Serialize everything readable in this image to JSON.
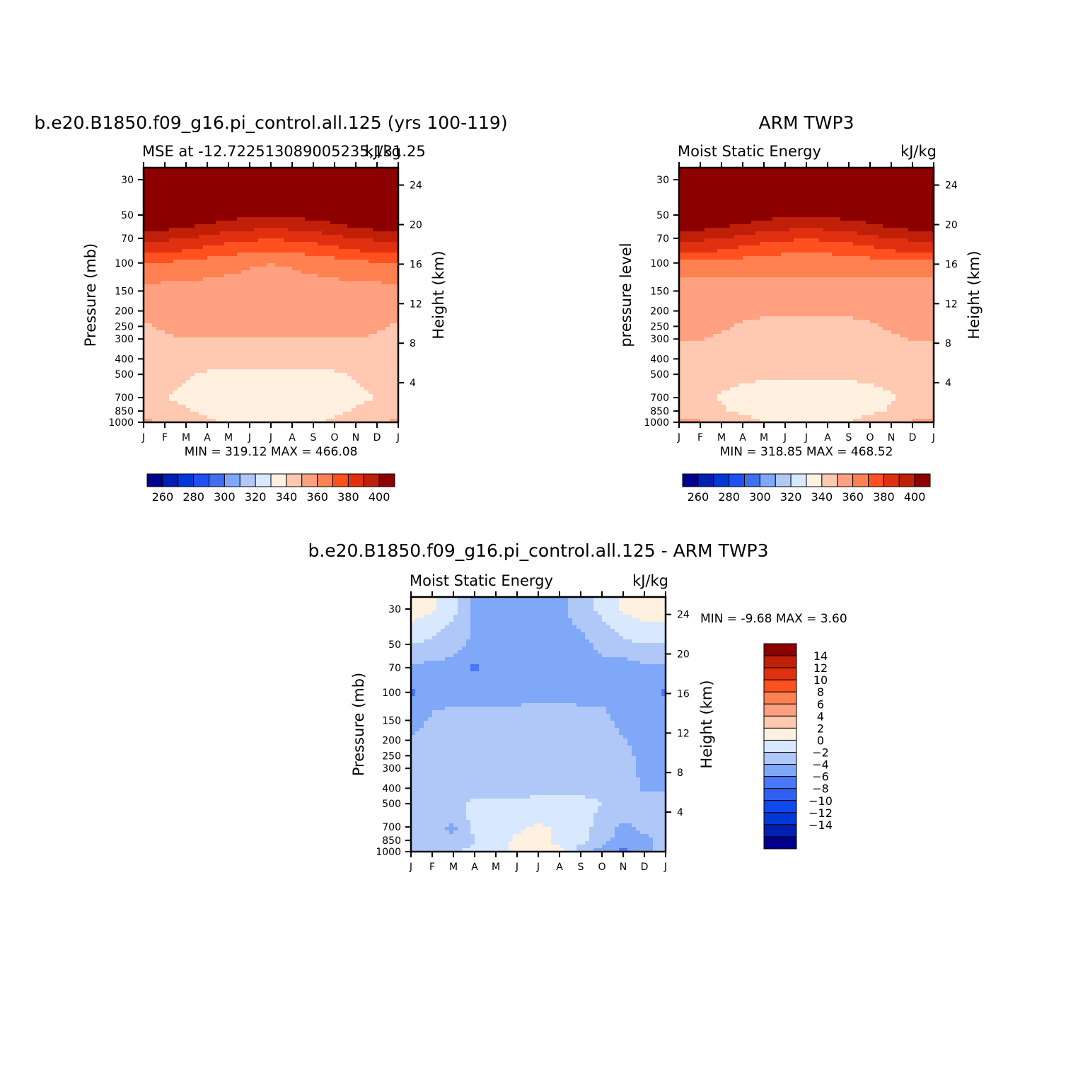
{
  "chart_data": [
    {
      "type": "heatmap",
      "title": "b.e20.B1850.f09_g16.pi_control.all.125 (yrs 100-119)",
      "left_subtitle": "MSE at -12.722513089005235,131.25",
      "right_subtitle": "kJ/kg",
      "ylabel": "Pressure (mb)",
      "y2label": "Height (km)",
      "x_ticks": [
        "J",
        "F",
        "M",
        "A",
        "M",
        "J",
        "J",
        "A",
        "S",
        "O",
        "N",
        "D",
        "J"
      ],
      "y_ticks": [
        "30",
        "50",
        "70",
        "100",
        "150",
        "200",
        "250",
        "300",
        "400",
        "500",
        "700",
        "850",
        "1000"
      ],
      "y2_ticks": [
        "24",
        "20",
        "16",
        "12",
        "8",
        "4"
      ],
      "stats": "MIN = 319.12  MAX = 466.08",
      "min": 319.12,
      "max": 466.08,
      "colorbar_labels": [
        "260",
        "280",
        "300",
        "320",
        "340",
        "360",
        "380",
        "400"
      ],
      "levels": [
        250,
        260,
        270,
        280,
        290,
        300,
        310,
        320,
        330,
        340,
        350,
        360,
        370,
        380,
        390,
        400
      ],
      "field": {
        "pressure_levels": [
          30,
          50,
          60,
          70,
          85,
          100,
          150,
          250,
          500,
          700,
          850,
          1000
        ],
        "note_months": "13 columns J..J",
        "values": [
          [
            420,
            420,
            420,
            420,
            420,
            420,
            420,
            420,
            420,
            420,
            420,
            420,
            420
          ],
          [
            401,
            400,
            399,
            397,
            394,
            392,
            391,
            392,
            394,
            396,
            398,
            400,
            401
          ],
          [
            393,
            392,
            390,
            387,
            384,
            382,
            381,
            382,
            384,
            387,
            390,
            392,
            393
          ],
          [
            383,
            382,
            380,
            377,
            374,
            372,
            371,
            372,
            374,
            377,
            380,
            382,
            383
          ],
          [
            372,
            371,
            369,
            366,
            363,
            361,
            360,
            361,
            363,
            366,
            369,
            371,
            372
          ],
          [
            360,
            359,
            357,
            355,
            353,
            351,
            350,
            351,
            353,
            355,
            357,
            359,
            360
          ],
          [
            346,
            346,
            346,
            346,
            346,
            346,
            346,
            346,
            346,
            346,
            346,
            346,
            346
          ],
          [
            339,
            341,
            343,
            344,
            344,
            344,
            344,
            344,
            344,
            344,
            343,
            341,
            339
          ],
          [
            333,
            333,
            331,
            329,
            328,
            328,
            328,
            328,
            328,
            329,
            331,
            333,
            333
          ],
          [
            332,
            330,
            328,
            326,
            324,
            323,
            322,
            323,
            324,
            326,
            328,
            330,
            332
          ],
          [
            335,
            333,
            331,
            328,
            326,
            325,
            324,
            325,
            326,
            328,
            331,
            333,
            335
          ],
          [
            342,
            340,
            336,
            332,
            328,
            327,
            326,
            327,
            328,
            332,
            336,
            340,
            342
          ]
        ]
      }
    },
    {
      "type": "heatmap",
      "title": "ARM TWP3",
      "left_subtitle": "Moist Static Energy",
      "right_subtitle": "kJ/kg",
      "ylabel": "pressure level",
      "y2label": "Height (km)",
      "x_ticks": [
        "J",
        "F",
        "M",
        "A",
        "M",
        "J",
        "J",
        "A",
        "S",
        "O",
        "N",
        "D",
        "J"
      ],
      "y_ticks": [
        "30",
        "50",
        "70",
        "100",
        "150",
        "200",
        "250",
        "300",
        "400",
        "500",
        "700",
        "850",
        "1000"
      ],
      "y2_ticks": [
        "24",
        "20",
        "16",
        "12",
        "8",
        "4"
      ],
      "stats": "MIN = 318.85  MAX = 468.52",
      "min": 318.85,
      "max": 468.52,
      "colorbar_labels": [
        "260",
        "280",
        "300",
        "320",
        "340",
        "360",
        "380",
        "400"
      ],
      "levels": [
        250,
        260,
        270,
        280,
        290,
        300,
        310,
        320,
        330,
        340,
        350,
        360,
        370,
        380,
        390,
        400
      ],
      "field": {
        "pressure_levels": [
          30,
          50,
          60,
          70,
          85,
          100,
          150,
          250,
          500,
          700,
          850,
          1000
        ],
        "values": [
          [
            420,
            420,
            420,
            420,
            420,
            420,
            420,
            420,
            420,
            420,
            420,
            420,
            420
          ],
          [
            401,
            400,
            399,
            397,
            394,
            392,
            391,
            392,
            394,
            396,
            398,
            400,
            401
          ],
          [
            393,
            392,
            390,
            387,
            384,
            382,
            381,
            382,
            384,
            387,
            390,
            392,
            393
          ],
          [
            383,
            382,
            380,
            377,
            374,
            372,
            371,
            372,
            374,
            377,
            380,
            382,
            383
          ],
          [
            372,
            371,
            369,
            366,
            363,
            361,
            360,
            361,
            363,
            366,
            369,
            371,
            372
          ],
          [
            355,
            355,
            355,
            355,
            355,
            355,
            355,
            355,
            355,
            355,
            355,
            355,
            355
          ],
          [
            346,
            346,
            346,
            346,
            346,
            346,
            346,
            346,
            346,
            346,
            346,
            346,
            346
          ],
          [
            342,
            342,
            341,
            339,
            338,
            337,
            337,
            337,
            338,
            339,
            341,
            342,
            342
          ],
          [
            336,
            335,
            334,
            333,
            332,
            332,
            332,
            332,
            332,
            333,
            334,
            335,
            336
          ],
          [
            334,
            332,
            329,
            326,
            324,
            323,
            322,
            323,
            324,
            326,
            329,
            332,
            334
          ],
          [
            336,
            334,
            331,
            328,
            326,
            325,
            324,
            325,
            326,
            328,
            331,
            334,
            336
          ],
          [
            342,
            341,
            338,
            334,
            330,
            328,
            327,
            328,
            330,
            334,
            338,
            341,
            342
          ]
        ]
      }
    },
    {
      "type": "heatmap",
      "title": "b.e20.B1850.f09_g16.pi_control.all.125 - ARM TWP3",
      "left_subtitle": "Moist Static Energy",
      "right_subtitle": "kJ/kg",
      "ylabel": "Pressure (mb)",
      "y2label": "Height (km)",
      "x_ticks": [
        "J",
        "F",
        "M",
        "A",
        "M",
        "J",
        "J",
        "A",
        "S",
        "O",
        "N",
        "D",
        "J"
      ],
      "y_ticks": [
        "30",
        "50",
        "70",
        "100",
        "150",
        "200",
        "250",
        "300",
        "400",
        "500",
        "700",
        "850",
        "1000"
      ],
      "y2_ticks": [
        "24",
        "20",
        "16",
        "12",
        "8",
        "4"
      ],
      "stats": "MIN =    -9.68  MAX =     3.60",
      "min": -9.68,
      "max": 3.6,
      "colorbar_labels": [
        "14",
        "12",
        "10",
        "8",
        "6",
        "4",
        "2",
        "0",
        "−2",
        "−4",
        "−6",
        "−8",
        "−10",
        "−12",
        "−14"
      ],
      "levels": [
        -16,
        -14,
        -12,
        -10,
        -8,
        -6,
        -4,
        -2,
        0,
        2,
        4,
        6,
        8,
        10,
        12,
        14,
        16
      ],
      "field": {
        "pressure_levels": [
          30,
          40,
          50,
          70,
          100,
          150,
          250,
          400,
          500,
          600,
          700,
          850,
          1000
        ],
        "values": [
          [
            1.0,
            0.5,
            -1.5,
            -4.5,
            -4.5,
            -4.5,
            -4.5,
            -4.5,
            -3.0,
            -1.5,
            0.5,
            1.0,
            1.0
          ],
          [
            -0.5,
            -1.5,
            -2.5,
            -4.5,
            -4.5,
            -4.5,
            -4.5,
            -4.5,
            -4.0,
            -2.5,
            -1.5,
            -0.5,
            -0.5
          ],
          [
            -2.0,
            -2.5,
            -3.0,
            -4.5,
            -4.5,
            -4.5,
            -4.5,
            -4.5,
            -4.5,
            -3.5,
            -2.5,
            -2.0,
            -2.0
          ],
          [
            -4.5,
            -4.5,
            -5.0,
            -6.5,
            -4.5,
            -4.5,
            -4.5,
            -4.5,
            -4.5,
            -4.5,
            -5.0,
            -4.5,
            -4.5
          ],
          [
            -6.3,
            -4.5,
            -4.5,
            -4.5,
            -4.5,
            -4.5,
            -4.5,
            -4.5,
            -4.5,
            -4.5,
            -4.5,
            -5.5,
            -6.3
          ],
          [
            -4.5,
            -3.8,
            -3.5,
            -3.5,
            -3.6,
            -3.4,
            -3.3,
            -3.3,
            -3.4,
            -3.5,
            -4.5,
            -4.5,
            -4.5
          ],
          [
            -3.5,
            -3.0,
            -3.0,
            -3.0,
            -3.0,
            -3.0,
            -3.0,
            -3.0,
            -3.0,
            -3.0,
            -3.5,
            -4.5,
            -4.5
          ],
          [
            -3.0,
            -3.0,
            -3.0,
            -3.0,
            -3.0,
            -3.0,
            -3.0,
            -3.0,
            -3.0,
            -3.0,
            -3.0,
            -4.3,
            -4.5
          ],
          [
            -2.5,
            -2.5,
            -3.0,
            -1.5,
            -1.5,
            -1.5,
            -1.0,
            -1.0,
            -1.0,
            -2.0,
            -3.0,
            -3.0,
            -3.0
          ],
          [
            -3.0,
            -3.5,
            -2.5,
            -1.5,
            -1.0,
            -1.0,
            -1.0,
            -1.0,
            -1.5,
            -2.5,
            -3.5,
            -3.5,
            -3.0
          ],
          [
            -3.0,
            -3.5,
            -4.5,
            -1.5,
            -1.0,
            -0.5,
            0.5,
            -0.5,
            -1.5,
            -2.5,
            -4.5,
            -3.5,
            -3.0
          ],
          [
            -3.5,
            -3.5,
            -3.5,
            -2.0,
            -1.0,
            0.5,
            0.5,
            -0.5,
            -1.5,
            -3.0,
            -5.5,
            -4.5,
            -3.5
          ],
          [
            -2.5,
            -2.0,
            -2.0,
            -1.5,
            -0.5,
            0.5,
            0.5,
            0.5,
            -3.0,
            -5.0,
            -6.5,
            -5.0,
            -3.0
          ]
        ]
      }
    }
  ],
  "colors": {
    "positive_colorbar": [
      "#00008c",
      "#0020b0",
      "#0038d8",
      "#2050f0",
      "#4070f0",
      "#80a8f8",
      "#b0c8f8",
      "#d8e8ff",
      "#fff0e0",
      "#ffc8b0",
      "#ffa080",
      "#ff8050",
      "#ff5020",
      "#e03010",
      "#c02008",
      "#8c0000"
    ],
    "difference_colorbar": [
      "#00008c",
      "#0020b0",
      "#0038d8",
      "#1048f0",
      "#3060f0",
      "#4878f8",
      "#80a8f8",
      "#b0c8f8",
      "#d8e8ff",
      "#fff0e0",
      "#ffc8b0",
      "#ffa080",
      "#ff8050",
      "#ff5020",
      "#e03010",
      "#c02008",
      "#8c0000"
    ]
  }
}
